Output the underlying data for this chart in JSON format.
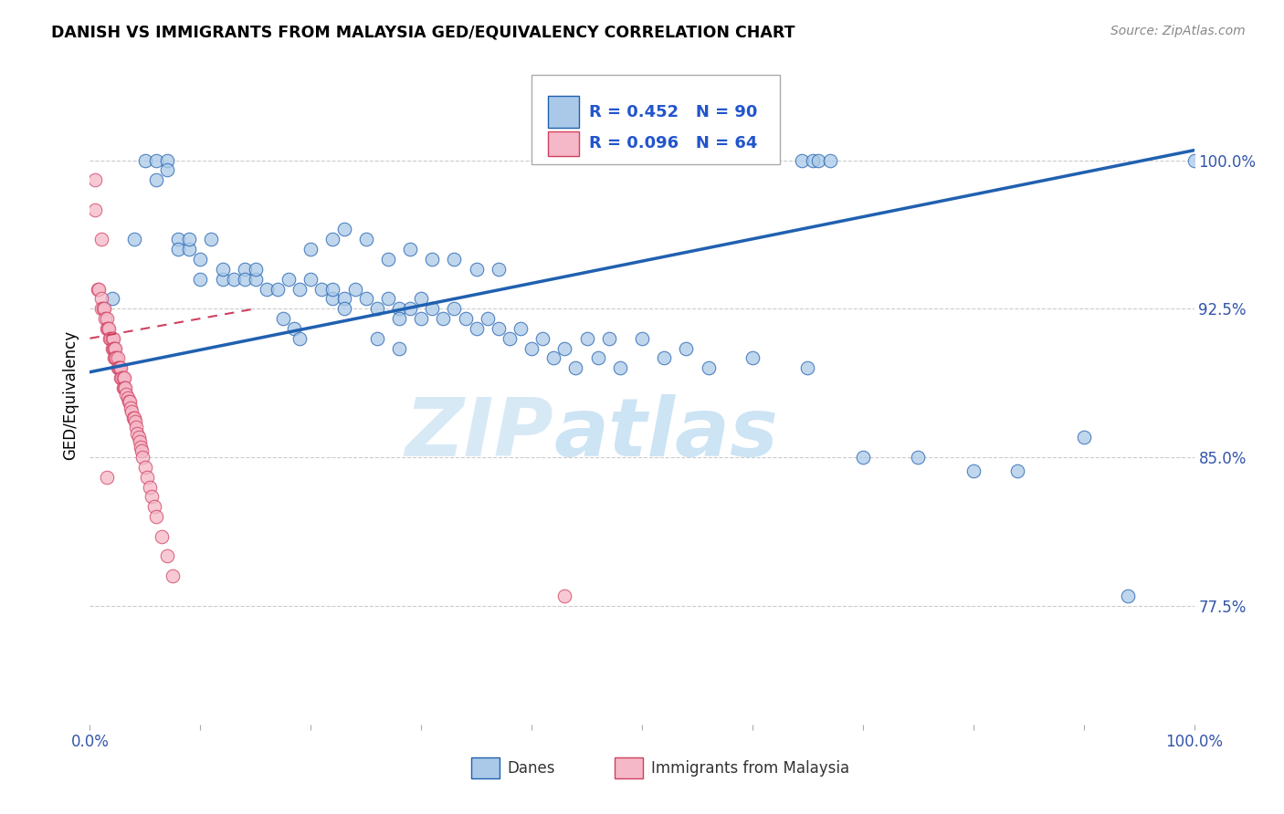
{
  "title": "DANISH VS IMMIGRANTS FROM MALAYSIA GED/EQUIVALENCY CORRELATION CHART",
  "source": "Source: ZipAtlas.com",
  "ylabel": "GED/Equivalency",
  "ytick_labels": [
    "77.5%",
    "85.0%",
    "92.5%",
    "100.0%"
  ],
  "ytick_values": [
    0.775,
    0.85,
    0.925,
    1.0
  ],
  "legend_blue_r": "R = 0.452",
  "legend_blue_n": "N = 90",
  "legend_pink_r": "R = 0.096",
  "legend_pink_n": "N = 64",
  "legend_label_blue": "Danes",
  "legend_label_pink": "Immigrants from Malaysia",
  "blue_color": "#aac9e8",
  "pink_color": "#f5b8c8",
  "trendline_blue": "#2060b0",
  "trendline_pink": "#d04060",
  "xmin": 0.0,
  "xmax": 1.0,
  "ymin": 0.715,
  "ymax": 1.048,
  "blue_x": [
    0.02,
    0.04,
    0.05,
    0.06,
    0.06,
    0.07,
    0.07,
    0.08,
    0.08,
    0.09,
    0.09,
    0.1,
    0.1,
    0.11,
    0.12,
    0.12,
    0.13,
    0.14,
    0.14,
    0.15,
    0.15,
    0.16,
    0.17,
    0.18,
    0.19,
    0.2,
    0.21,
    0.22,
    0.22,
    0.23,
    0.23,
    0.24,
    0.25,
    0.26,
    0.27,
    0.28,
    0.28,
    0.29,
    0.3,
    0.3,
    0.31,
    0.32,
    0.33,
    0.34,
    0.35,
    0.36,
    0.37,
    0.38,
    0.39,
    0.4,
    0.41,
    0.42,
    0.43,
    0.44,
    0.45,
    0.46,
    0.47,
    0.48,
    0.5,
    0.52,
    0.54,
    0.56,
    0.6,
    0.65,
    0.7,
    0.75,
    0.8,
    0.84,
    0.9,
    0.94,
    0.2,
    0.22,
    0.23,
    0.25,
    0.27,
    0.29,
    0.31,
    0.33,
    0.35,
    0.37,
    0.175,
    0.185,
    0.19,
    0.26,
    0.28,
    0.645,
    0.655,
    0.66,
    0.67,
    1.0
  ],
  "blue_y": [
    0.93,
    0.96,
    1.0,
    1.0,
    0.99,
    1.0,
    0.995,
    0.96,
    0.955,
    0.955,
    0.96,
    0.95,
    0.94,
    0.96,
    0.94,
    0.945,
    0.94,
    0.945,
    0.94,
    0.94,
    0.945,
    0.935,
    0.935,
    0.94,
    0.935,
    0.94,
    0.935,
    0.93,
    0.935,
    0.93,
    0.925,
    0.935,
    0.93,
    0.925,
    0.93,
    0.925,
    0.92,
    0.925,
    0.92,
    0.93,
    0.925,
    0.92,
    0.925,
    0.92,
    0.915,
    0.92,
    0.915,
    0.91,
    0.915,
    0.905,
    0.91,
    0.9,
    0.905,
    0.895,
    0.91,
    0.9,
    0.91,
    0.895,
    0.91,
    0.9,
    0.905,
    0.895,
    0.9,
    0.895,
    0.85,
    0.85,
    0.843,
    0.843,
    0.86,
    0.78,
    0.955,
    0.96,
    0.965,
    0.96,
    0.95,
    0.955,
    0.95,
    0.95,
    0.945,
    0.945,
    0.92,
    0.915,
    0.91,
    0.91,
    0.905,
    1.0,
    1.0,
    1.0,
    1.0,
    1.0
  ],
  "pink_x": [
    0.005,
    0.007,
    0.008,
    0.01,
    0.01,
    0.012,
    0.013,
    0.014,
    0.015,
    0.015,
    0.016,
    0.017,
    0.018,
    0.019,
    0.02,
    0.02,
    0.021,
    0.021,
    0.022,
    0.022,
    0.023,
    0.023,
    0.024,
    0.025,
    0.025,
    0.026,
    0.027,
    0.028,
    0.028,
    0.029,
    0.03,
    0.03,
    0.031,
    0.031,
    0.032,
    0.033,
    0.034,
    0.035,
    0.036,
    0.037,
    0.038,
    0.039,
    0.04,
    0.041,
    0.042,
    0.043,
    0.044,
    0.045,
    0.046,
    0.047,
    0.048,
    0.05,
    0.052,
    0.054,
    0.056,
    0.058,
    0.06,
    0.065,
    0.07,
    0.075,
    0.005,
    0.01,
    0.015,
    0.43
  ],
  "pink_y": [
    0.975,
    0.935,
    0.935,
    0.93,
    0.925,
    0.925,
    0.925,
    0.92,
    0.92,
    0.915,
    0.915,
    0.915,
    0.91,
    0.91,
    0.91,
    0.905,
    0.91,
    0.905,
    0.905,
    0.9,
    0.905,
    0.9,
    0.9,
    0.9,
    0.895,
    0.895,
    0.895,
    0.89,
    0.895,
    0.89,
    0.89,
    0.885,
    0.89,
    0.885,
    0.885,
    0.882,
    0.88,
    0.878,
    0.878,
    0.875,
    0.873,
    0.87,
    0.87,
    0.868,
    0.865,
    0.862,
    0.86,
    0.858,
    0.855,
    0.853,
    0.85,
    0.845,
    0.84,
    0.835,
    0.83,
    0.825,
    0.82,
    0.81,
    0.8,
    0.79,
    0.99,
    0.96,
    0.84,
    0.78
  ]
}
